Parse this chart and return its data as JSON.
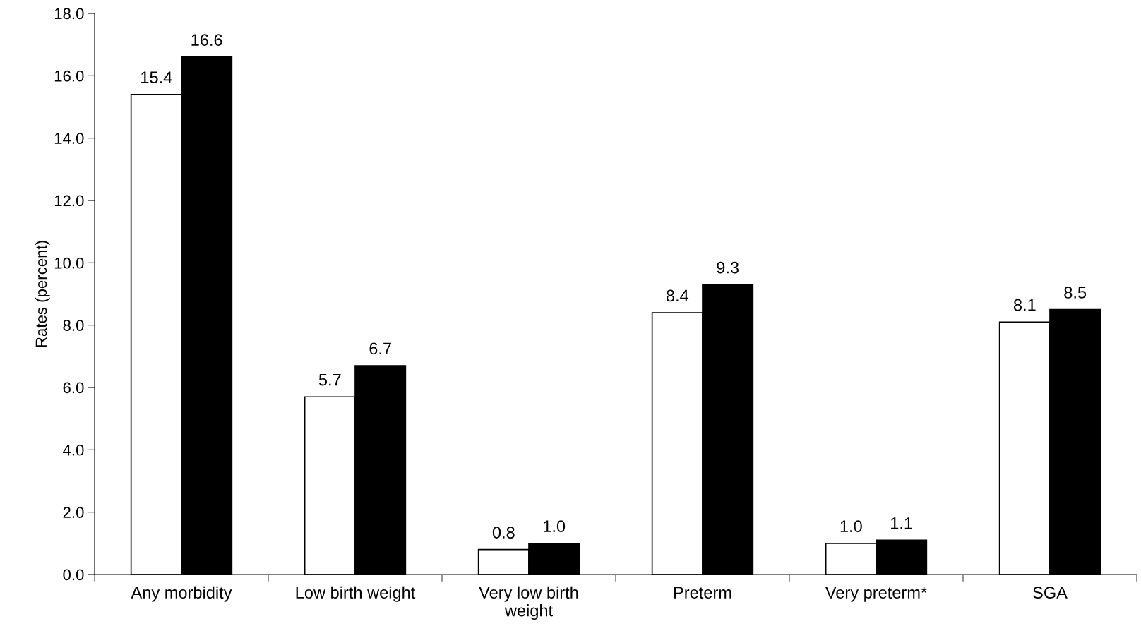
{
  "chart_data": {
    "type": "bar",
    "ylabel": "Rates (percent)",
    "categories": [
      "Any morbidity",
      "Low birth weight",
      "Very low birth\nweight",
      "Preterm",
      "Very preterm*",
      "SGA"
    ],
    "series": [
      {
        "color": "#ffffff",
        "values": [
          15.4,
          5.7,
          0.8,
          8.4,
          1.0,
          8.1
        ],
        "value_labels": [
          "15.4",
          "5.7",
          "0.8",
          "8.4",
          "1.0",
          "8.1"
        ]
      },
      {
        "color": "#000000",
        "values": [
          16.6,
          6.7,
          1.0,
          9.3,
          1.1,
          8.5
        ],
        "value_labels": [
          "16.6",
          "6.7",
          "1.0",
          "9.3",
          "1.1",
          "8.5"
        ]
      }
    ],
    "ylim": [
      0,
      18
    ],
    "yticks": [
      {
        "value": 0,
        "label": "0.0"
      },
      {
        "value": 2,
        "label": "2.0"
      },
      {
        "value": 4,
        "label": "4.0"
      },
      {
        "value": 6,
        "label": "6.0"
      },
      {
        "value": 8,
        "label": "8.0"
      },
      {
        "value": 10,
        "label": "10.0"
      },
      {
        "value": 12,
        "label": "12.0"
      },
      {
        "value": 14,
        "label": "14.0"
      },
      {
        "value": 16,
        "label": "16.0"
      },
      {
        "value": 18,
        "label": "18.0"
      }
    ],
    "grid": false,
    "legend": false
  }
}
